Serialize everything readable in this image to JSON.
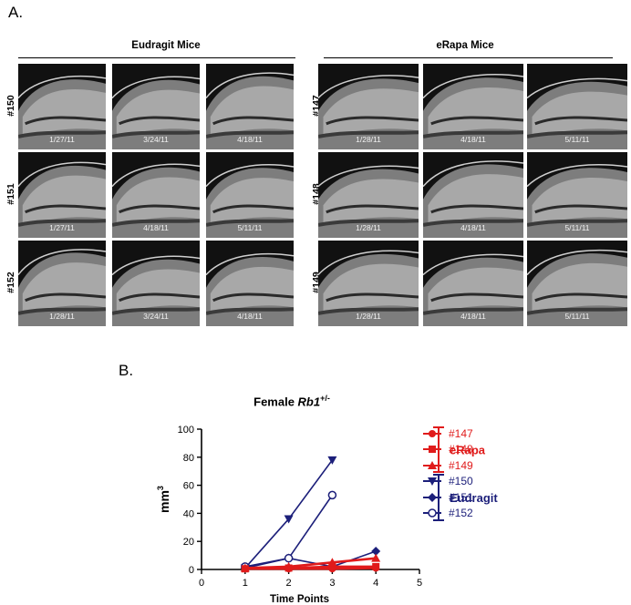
{
  "panel_a": {
    "label": "A.",
    "groups": [
      {
        "title": "Eudragit Mice",
        "rows": [
          {
            "id": "#150",
            "dates": [
              "1/27/11",
              "3/24/11",
              "4/18/11"
            ]
          },
          {
            "id": "#151",
            "dates": [
              "1/27/11",
              "4/18/11",
              "5/11/11"
            ]
          },
          {
            "id": "#152",
            "dates": [
              "1/28/11",
              "3/24/11",
              "4/18/11"
            ]
          }
        ]
      },
      {
        "title": "eRapa Mice",
        "rows": [
          {
            "id": "#147",
            "dates": [
              "1/28/11",
              "4/18/11",
              "5/11/11"
            ]
          },
          {
            "id": "#148",
            "dates": [
              "1/28/11",
              "4/18/11",
              "5/11/11"
            ]
          },
          {
            "id": "#149",
            "dates": [
              "1/28/11",
              "4/18/11",
              "5/11/11"
            ]
          }
        ]
      }
    ]
  },
  "panel_b": {
    "label": "B.",
    "title_main": "Female ",
    "title_gene": "Rb1",
    "title_sup": "+/-"
  },
  "chart_data": {
    "type": "line",
    "title": "Female Rb1+/-",
    "xlabel": "Time Points",
    "ylabel": "mm3",
    "xlim": [
      0,
      5
    ],
    "ylim": [
      0,
      100
    ],
    "xticks": [
      "0",
      "1",
      "2",
      "3",
      "4",
      "5"
    ],
    "yticks": [
      "0",
      "20",
      "40",
      "60",
      "80",
      "100"
    ],
    "grid": false,
    "legend_position": "right",
    "colors": {
      "eRapa": "#e01b1b",
      "Eudragit": "#1c1f7a"
    },
    "series": [
      {
        "name": "#147",
        "group": "eRapa",
        "marker": "circle-filled",
        "x": [
          1,
          2,
          3,
          4
        ],
        "y": [
          0.5,
          0.5,
          0.5,
          1
        ]
      },
      {
        "name": "#148",
        "group": "eRapa",
        "marker": "square-filled",
        "x": [
          1,
          2,
          3,
          4
        ],
        "y": [
          0.5,
          1,
          2,
          2
        ]
      },
      {
        "name": "#149",
        "group": "eRapa",
        "marker": "triangle-up-filled",
        "x": [
          1,
          2,
          3,
          4
        ],
        "y": [
          1,
          2,
          5,
          8
        ]
      },
      {
        "name": "#150",
        "group": "Eudragit",
        "marker": "triangle-down-filled",
        "x": [
          1,
          2,
          3
        ],
        "y": [
          1,
          36,
          78
        ]
      },
      {
        "name": "#151",
        "group": "Eudragit",
        "marker": "diamond-filled",
        "x": [
          1,
          2,
          3,
          4
        ],
        "y": [
          1,
          8,
          2,
          13
        ]
      },
      {
        "name": "#152",
        "group": "Eudragit",
        "marker": "circle-open",
        "x": [
          1,
          2,
          3
        ],
        "y": [
          2,
          8,
          53
        ]
      }
    ],
    "group_labels": [
      {
        "name": "eRapa",
        "members": [
          "#147",
          "#148",
          "#149"
        ]
      },
      {
        "name": "Eudragit",
        "members": [
          "#150",
          "#151",
          "#152"
        ]
      }
    ]
  }
}
